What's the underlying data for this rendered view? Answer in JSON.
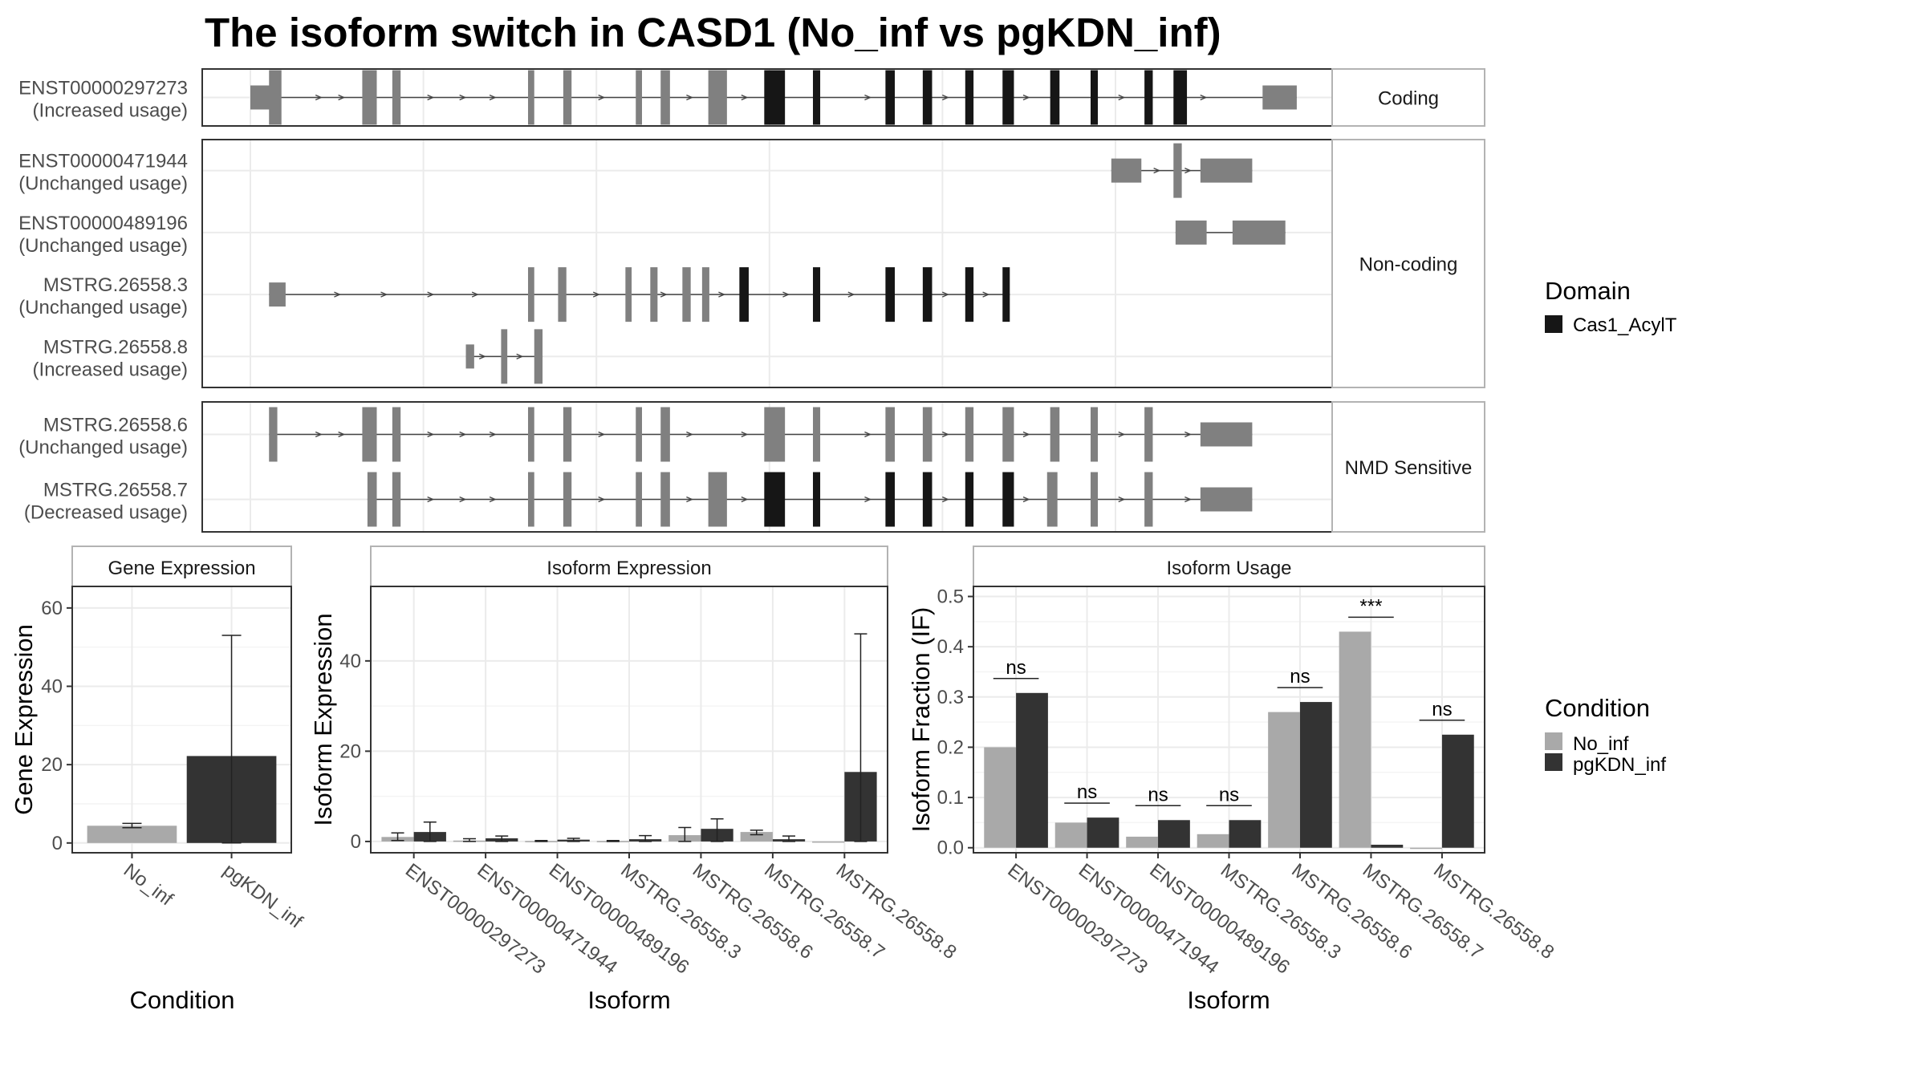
{
  "title": "The isoform switch in CASD1 (No_inf vs pgKDN_inf)",
  "structure": {
    "x_range": [
      0,
      100
    ],
    "groups": [
      {
        "label": "Coding",
        "tracks": [
          {
            "id": "ENST00000297273",
            "usage": "(Increased usage)",
            "utr": [
              [
                0,
                2
              ],
              [
                97.7,
                101
              ]
            ],
            "exons": [
              [
                1.8,
                3
              ],
              [
                10.8,
                12.2
              ],
              [
                13.7,
                14.5
              ],
              [
                26.8,
                27.4
              ],
              [
                30.2,
                31.0
              ],
              [
                37.2,
                37.8
              ],
              [
                39.6,
                40.5
              ],
              [
                44.2,
                46.0
              ]
            ],
            "domain": [
              [
                49.6,
                51.6
              ],
              [
                54.3,
                55.0
              ],
              [
                61.3,
                62.2
              ],
              [
                64.9,
                65.8
              ],
              [
                69.0,
                69.8
              ],
              [
                72.6,
                73.7
              ],
              [
                77.2,
                78.1
              ],
              [
                81.1,
                81.8
              ],
              [
                86.3,
                87.1
              ],
              [
                89.1,
                90.4
              ]
            ],
            "arrows": [
              6.6,
              8.8,
              17.4,
              20.5,
              23.4,
              33.9,
              42.4,
              47.7,
              59.6,
              67.1,
              74.9,
              84.1,
              92.0
            ]
          }
        ]
      },
      {
        "label": "Non-coding",
        "tracks": [
          {
            "id": "ENST00000471944",
            "usage": "(Unchanged usage)",
            "utr": [
              [
                83.1,
                86.0
              ],
              [
                91.7,
                96.7
              ]
            ],
            "exons": [
              [
                89.1,
                89.9
              ]
            ],
            "domain": [],
            "arrows": [
              87.5,
              90.5
            ]
          },
          {
            "id": "ENST00000489196",
            "usage": "(Unchanged usage)",
            "utr": [
              [
                89.3,
                92.3
              ],
              [
                94.8,
                99.9
              ]
            ],
            "exons": [],
            "domain": [],
            "arrows": []
          },
          {
            "id": "MSTRG.26558.3",
            "usage": "(Unchanged usage)",
            "utr": [
              [
                1.8,
                3.4
              ]
            ],
            "exons": [
              [
                26.8,
                27.4
              ],
              [
                29.7,
                30.5
              ],
              [
                36.2,
                36.8
              ],
              [
                38.6,
                39.3
              ],
              [
                41.7,
                42.5
              ],
              [
                43.6,
                44.3
              ]
            ],
            "domain": [
              [
                47.2,
                48.1
              ],
              [
                54.3,
                55.0
              ],
              [
                61.3,
                62.2
              ],
              [
                64.9,
                65.8
              ],
              [
                69.0,
                69.8
              ],
              [
                72.6,
                73.3
              ]
            ],
            "arrows": [
              8.4,
              12.9,
              17.4,
              21.7,
              33.4,
              39.9,
              45.5,
              51.7,
              58.0,
              67.1,
              71.0
            ]
          },
          {
            "id": "MSTRG.26558.8",
            "usage": "(Increased usage)",
            "utr": [
              [
                20.8,
                21.6
              ]
            ],
            "exons": [
              [
                24.2,
                24.8
              ],
              [
                27.4,
                28.2
              ]
            ],
            "domain": [],
            "arrows": [
              22.4,
              26.0
            ]
          }
        ]
      },
      {
        "label": "NMD Sensitive",
        "tracks": [
          {
            "id": "MSTRG.26558.6",
            "usage": "(Unchanged usage)",
            "utr": [
              [
                91.7,
                96.7
              ]
            ],
            "exons": [
              [
                1.8,
                2.6
              ],
              [
                10.8,
                12.2
              ],
              [
                13.7,
                14.5
              ],
              [
                26.8,
                27.4
              ],
              [
                30.2,
                31.0
              ],
              [
                37.2,
                37.8
              ],
              [
                39.6,
                40.5
              ],
              [
                49.6,
                51.6
              ],
              [
                54.3,
                55.0
              ],
              [
                61.3,
                62.2
              ],
              [
                64.9,
                65.8
              ],
              [
                69.0,
                69.8
              ],
              [
                72.6,
                73.7
              ],
              [
                77.2,
                78.1
              ],
              [
                81.1,
                81.8
              ],
              [
                86.3,
                87.1
              ]
            ],
            "domain": [],
            "arrows": [
              6.6,
              8.8,
              17.4,
              20.5,
              23.4,
              33.9,
              42.4,
              47.7,
              59.6,
              67.1,
              74.9,
              84.1,
              90.5
            ]
          },
          {
            "id": "MSTRG.26558.7",
            "usage": "(Decreased usage)",
            "utr": [
              [
                91.7,
                96.7
              ]
            ],
            "exons": [
              [
                11.3,
                12.2
              ],
              [
                13.7,
                14.5
              ],
              [
                26.8,
                27.4
              ],
              [
                30.2,
                31.0
              ],
              [
                37.2,
                37.8
              ],
              [
                39.6,
                40.5
              ],
              [
                44.2,
                46.0
              ],
              [
                76.9,
                77.9
              ],
              [
                81.1,
                81.8
              ],
              [
                86.3,
                87.1
              ]
            ],
            "domain": [
              [
                49.6,
                51.6
              ],
              [
                54.3,
                55.0
              ],
              [
                61.3,
                62.2
              ],
              [
                64.9,
                65.8
              ],
              [
                69.0,
                69.8
              ],
              [
                72.6,
                73.7
              ]
            ],
            "arrows": [
              17.4,
              20.5,
              23.4,
              33.9,
              42.4,
              47.7,
              59.6,
              67.1,
              74.9,
              84.1,
              90.5
            ]
          }
        ]
      }
    ]
  },
  "domain_legend": {
    "title": "Domain",
    "items": [
      {
        "label": "Cas1_AcylT",
        "color": "#161616"
      }
    ]
  },
  "condition_legend": {
    "title": "Condition",
    "items": [
      {
        "label": "No_inf",
        "color": "#a9a9a9"
      },
      {
        "label": "pgKDN_inf",
        "color": "#333333"
      }
    ]
  },
  "chart_data": [
    {
      "type": "bar",
      "title": "Gene Expression",
      "xlabel": "Condition",
      "ylabel": "Gene Expression",
      "categories": [
        "No_inf",
        "pgKDN_inf"
      ],
      "values": [
        4.4,
        22.2
      ],
      "error": [
        [
          3.9,
          5.0
        ],
        [
          0,
          53.0
        ]
      ],
      "ylim": [
        -2.5,
        65.5
      ],
      "yticks": [
        0,
        20,
        40,
        60
      ],
      "grid": true
    },
    {
      "type": "bar",
      "title": "Isoform Expression",
      "xlabel": "Isoform",
      "ylabel": "Isoform Expression",
      "categories": [
        "ENST00000297273",
        "ENST00000471944",
        "ENST00000489196",
        "MSTRG.26558.3",
        "MSTRG.26558.6",
        "MSTRG.26558.7",
        "MSTRG.26558.8"
      ],
      "series": [
        {
          "name": "No_inf",
          "values": [
            1.0,
            0.2,
            0.1,
            0.1,
            1.4,
            2.1,
            0.0
          ],
          "error": [
            [
              0.2,
              1.9
            ],
            [
              0.0,
              0.6
            ],
            [
              0.0,
              0.2
            ],
            [
              0.0,
              0.2
            ],
            [
              0.0,
              3.1
            ],
            [
              1.5,
              2.5
            ],
            [
              0.0,
              0.0
            ]
          ]
        },
        {
          "name": "pgKDN_inf",
          "values": [
            2.1,
            0.7,
            0.4,
            0.5,
            2.8,
            0.5,
            15.4
          ],
          "error": [
            [
              0.0,
              4.3
            ],
            [
              0.0,
              1.2
            ],
            [
              0.0,
              0.7
            ],
            [
              0.0,
              1.3
            ],
            [
              0.0,
              5.0
            ],
            [
              0.0,
              1.2
            ],
            [
              0.0,
              46.0
            ]
          ]
        }
      ],
      "ylim": [
        -2.5,
        56.5
      ],
      "yticks": [
        0,
        20,
        40
      ],
      "grid": true
    },
    {
      "type": "bar",
      "title": "Isoform Usage",
      "xlabel": "Isoform",
      "ylabel": "Isoform Fraction (IF)",
      "categories": [
        "ENST00000297273",
        "ENST00000471944",
        "ENST00000489196",
        "MSTRG.26558.3",
        "MSTRG.26558.6",
        "MSTRG.26558.7",
        "MSTRG.26558.8"
      ],
      "series": [
        {
          "name": "No_inf",
          "values": [
            0.2,
            0.05,
            0.022,
            0.027,
            0.27,
            0.43,
            0.0
          ]
        },
        {
          "name": "pgKDN_inf",
          "values": [
            0.308,
            0.06,
            0.055,
            0.055,
            0.29,
            0.006,
            0.225
          ]
        }
      ],
      "significance": [
        "ns",
        "ns",
        "ns",
        "ns",
        "ns",
        "***",
        "ns"
      ],
      "ylim": [
        -0.01,
        0.52
      ],
      "yticks": [
        0.0,
        0.1,
        0.2,
        0.3,
        0.4,
        0.5
      ],
      "grid": true
    }
  ]
}
